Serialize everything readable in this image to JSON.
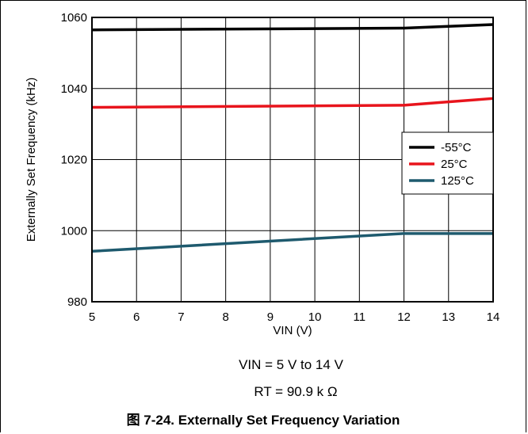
{
  "chart_data": {
    "type": "line",
    "xlabel": "VIN (V)",
    "ylabel": "Externally Set Frequency (kHz)",
    "xlim": [
      5,
      14
    ],
    "ylim": [
      980,
      1060
    ],
    "xticks": [
      "5",
      "6",
      "7",
      "8",
      "9",
      "10",
      "11",
      "12",
      "13",
      "14"
    ],
    "yticks": [
      "980",
      "1000",
      "1020",
      "1040",
      "1060"
    ],
    "grid": true,
    "legend_position": "right",
    "series": [
      {
        "name": "-55°C",
        "color": "#000000",
        "x": [
          5,
          12,
          14
        ],
        "y": [
          1056.5,
          1057.0,
          1058.0
        ]
      },
      {
        "name": "25°C",
        "color": "#e8141c",
        "x": [
          5,
          12,
          14
        ],
        "y": [
          1034.7,
          1035.3,
          1037.2
        ]
      },
      {
        "name": "125°C",
        "color": "#1e5a6e",
        "x": [
          5,
          12,
          14
        ],
        "y": [
          994.2,
          999.2,
          999.2
        ]
      }
    ]
  },
  "conditions": {
    "line1": "VIN = 5 V to 14 V",
    "line2": "RT = 90.9 k Ω"
  },
  "caption": "图 7-24. Externally Set Frequency Variation"
}
